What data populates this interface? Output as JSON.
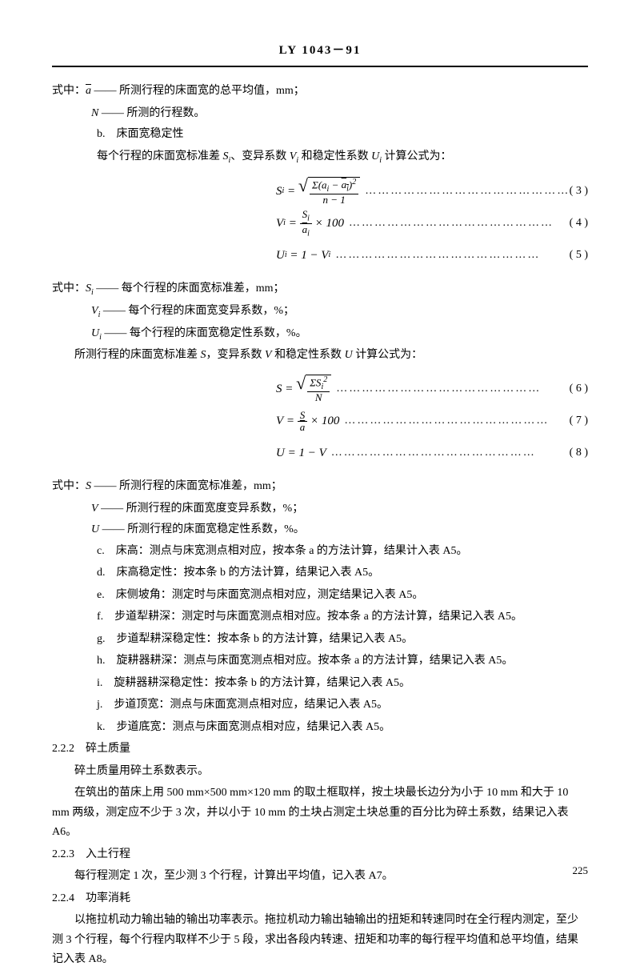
{
  "header": {
    "title": "LY 1043－91"
  },
  "text": {
    "where1_a": "式中：a̅ —— 所测行程的床面宽的总平均值，mm；",
    "where1_n": "N —— 所测的行程数。",
    "item_b": "b.　床面宽稳定性",
    "para_b": "每个行程的床面宽标准差 Sᵢ、变异系数 Vᵢ 和稳定性系数 Uᵢ 计算公式为：",
    "eq3_num": "( 3 )",
    "eq4_num": "( 4 )",
    "eq5_num": "( 5 )",
    "where2_intro": "式中：Sᵢ —— 每个行程的床面宽标准差，mm；",
    "where2_v": "Vᵢ —— 每个行程的床面宽变异系数，%；",
    "where2_u": "Uᵢ —— 每个行程的床面宽稳定性系数，%。",
    "para_all": "所测行程的床面宽标准差 S，变异系数 V 和稳定性系数 U 计算公式为：",
    "eq6_num": "( 6 )",
    "eq7_num": "( 7 )",
    "eq8_num": "( 8 )",
    "where3_s": "式中：S —— 所测行程的床面宽标准差，mm；",
    "where3_v": "V —— 所测行程的床面宽度变异系数，%；",
    "where3_u": "U —— 所测行程的床面宽稳定性系数，%。",
    "item_c": "c.　床高：测点与床宽测点相对应，按本条 a 的方法计算，结果计入表 A5。",
    "item_d": "d.　床高稳定性：按本条 b 的方法计算，结果记入表 A5。",
    "item_e": "e.　床侧坡角：测定时与床面宽测点相对应，测定结果记入表 A5。",
    "item_f": "f.　步道犁耕深：测定时与床面宽测点相对应。按本条 a 的方法计算，结果记入表 A5。",
    "item_g": "g.　步道犁耕深稳定性：按本条 b 的方法计算，结果记入表 A5。",
    "item_h": "h.　旋耕器耕深：测点与床面宽测点相对应。按本条 a 的方法计算，结果记入表 A5。",
    "item_i": "i.　旋耕器耕深稳定性：按本条 b 的方法计算，结果记入表 A5。",
    "item_j": "j.　步道顶宽：测点与床面宽测点相对应，结果记入表 A5。",
    "item_k": "k.　步道底宽：测点与床面宽测点相对应，结果记入表 A5。",
    "sec_222": "2.2.2　碎土质量",
    "para_222a": "碎土质量用碎土系数表示。",
    "para_222b": "在筑出的苗床上用 500 mm×500 mm×120 mm 的取土框取样，按土块最长边分为小于 10 mm 和大于 10 mm 两级，测定应不少于 3 次，并以小于 10 mm 的土块占测定土块总重的百分比为碎土系数，结果记入表 A6。",
    "sec_223": "2.2.3　入土行程",
    "para_223": "每行程测定 1 次，至少测 3 个行程，计算出平均值，记入表 A7。",
    "sec_224": "2.2.4　功率消耗",
    "para_224": "以拖拉机动力输出轴的输出功率表示。拖拉机动力输出轴输出的扭矩和转速同时在全行程内测定，至少测 3 个行程，每个行程内取样不少于 5 段，求出各段内转速、扭矩和功率的每行程平均值和总平均值，结果记入表 A8。"
  },
  "page_number": "225",
  "dots": "…………………………………………"
}
